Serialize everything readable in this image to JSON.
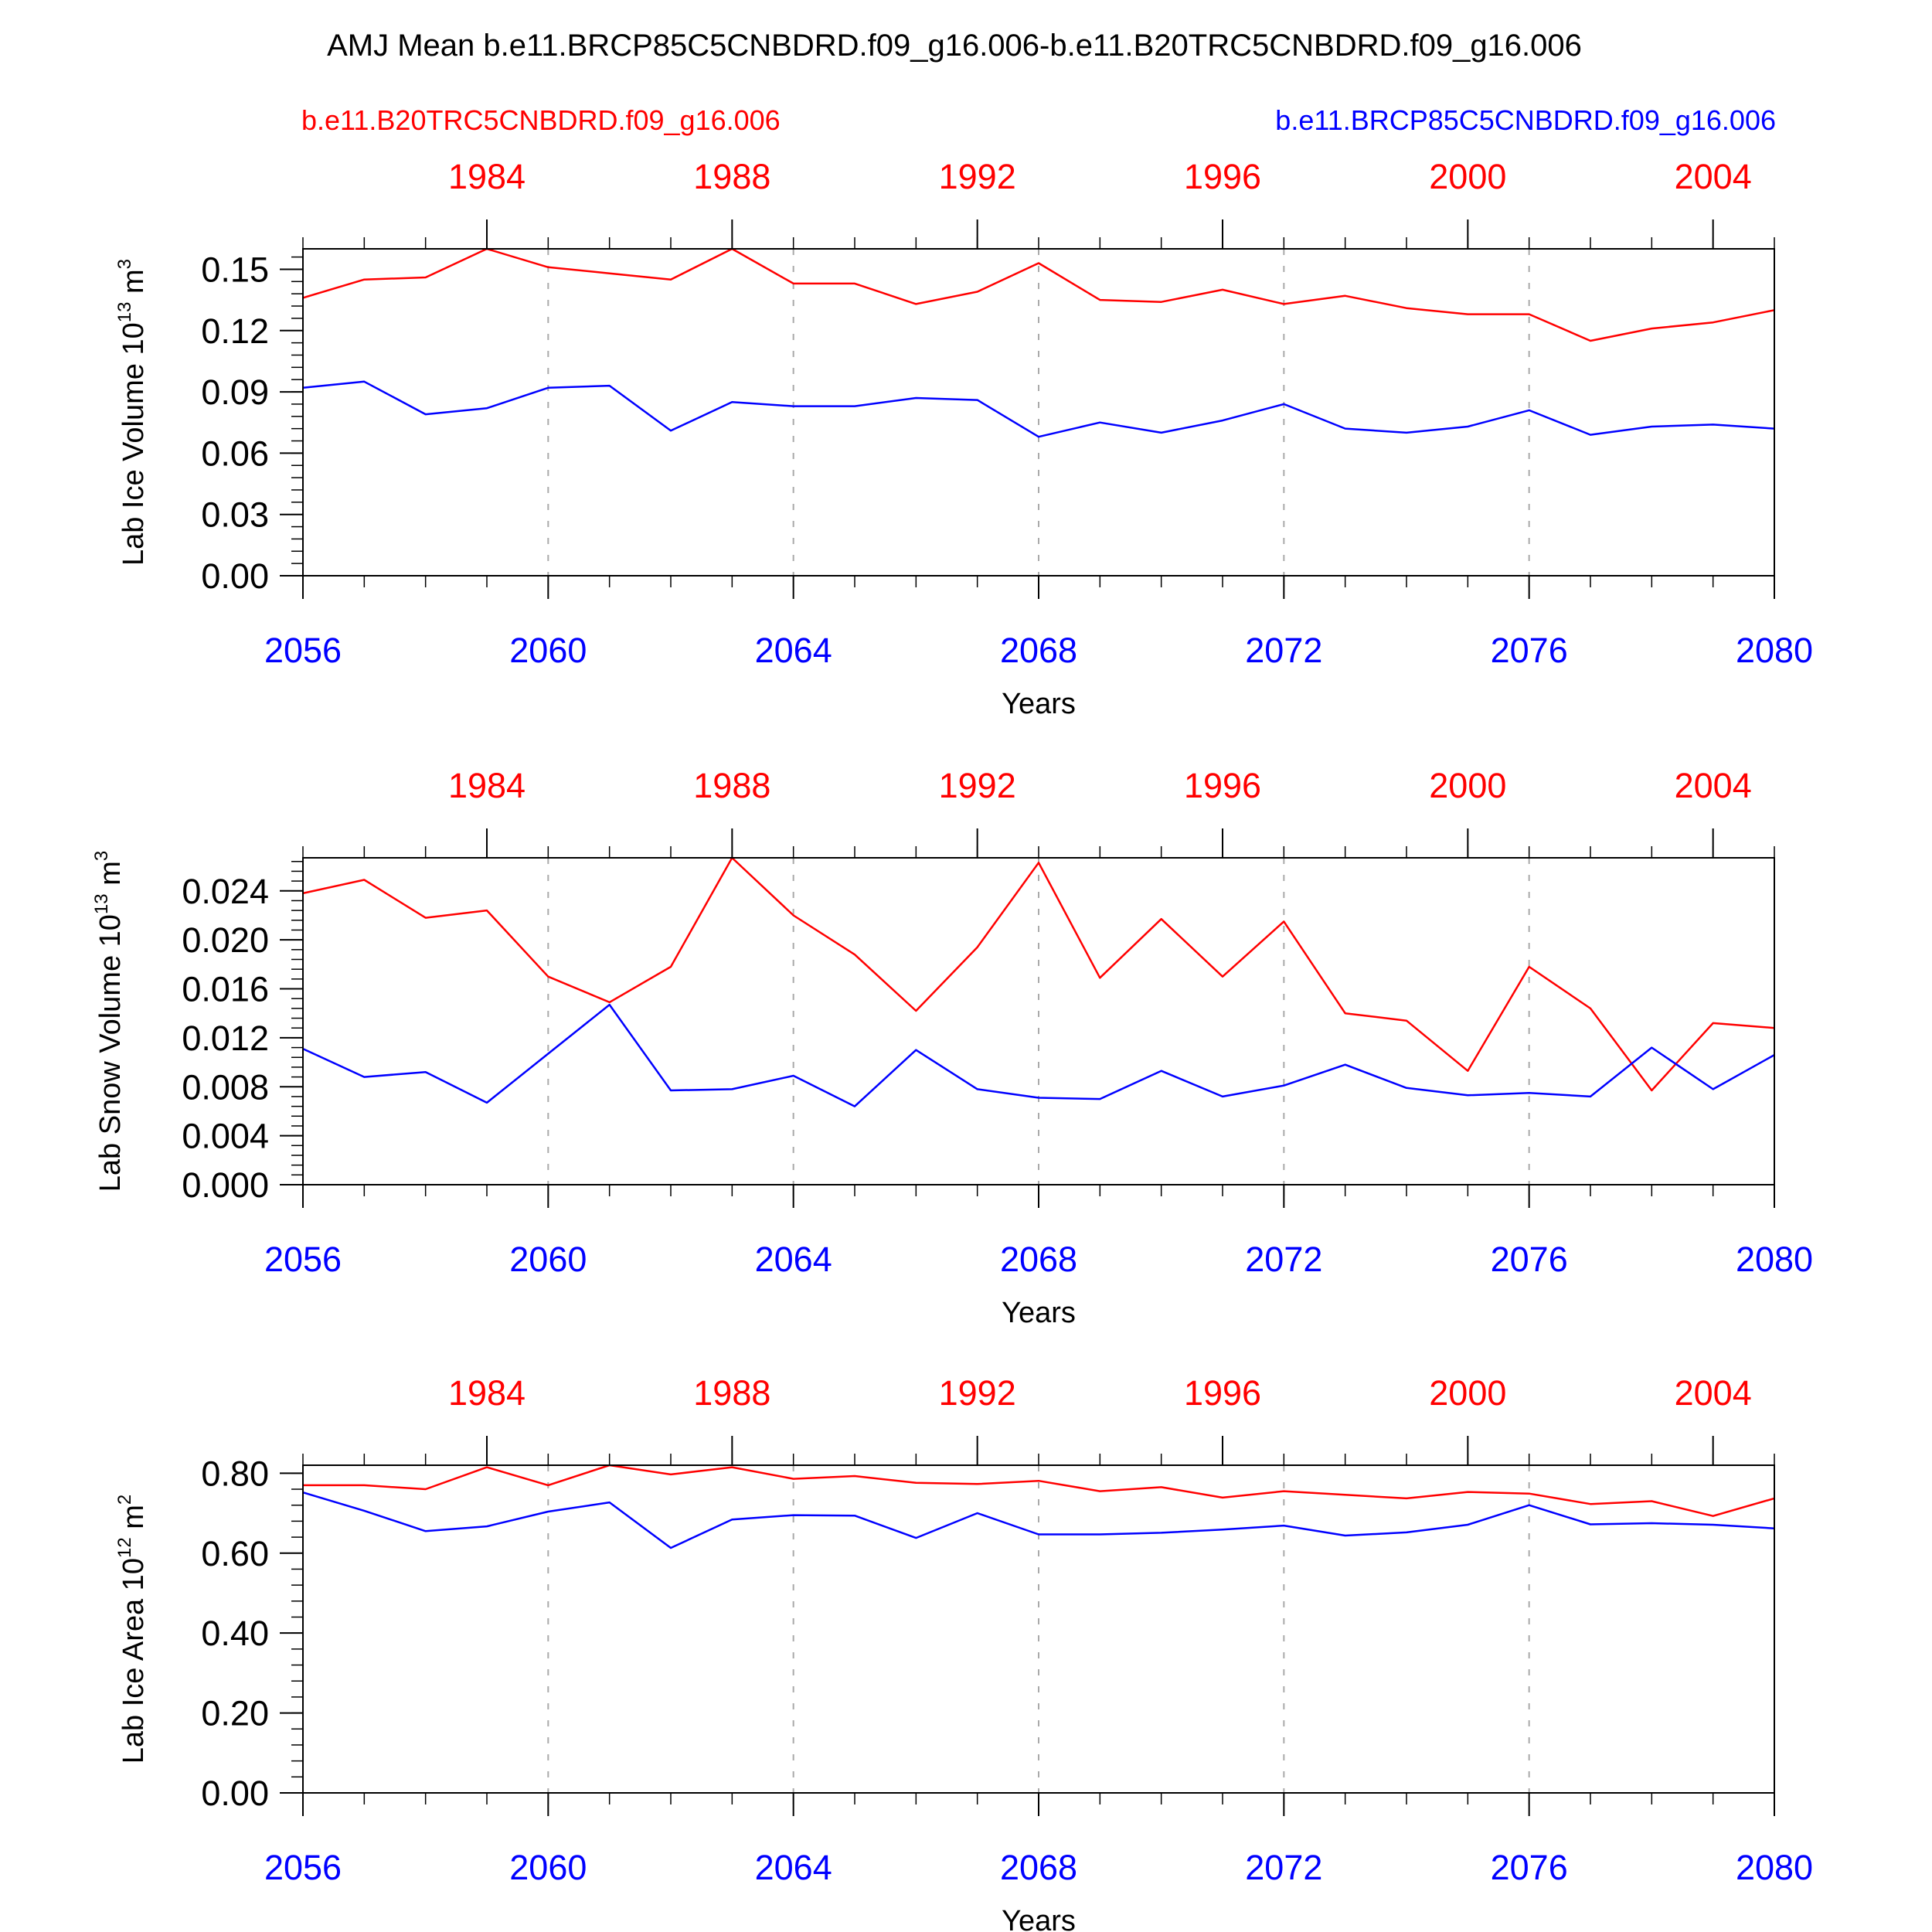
{
  "figure": {
    "title": "AMJ Mean b.e11.BRCP85C5CNBDRD.f09_g16.006-b.e11.B20TRC5CNBDRD.f09_g16.006",
    "left_case": "b.e11.B20TRC5CNBDRD.f09_g16.006",
    "right_case": "b.e11.BRCP85C5CNBDRD.f09_g16.006",
    "colors": {
      "historical": "#ff0000",
      "future": "#0000ff",
      "grid": "#aaaaaa"
    }
  },
  "chart_data": [
    {
      "type": "line",
      "ylabel": {
        "prefix": "Lab Ice Volume 10",
        "exp": "13",
        "unit": " m",
        "unit_exp": "3"
      },
      "xlabel": "Years",
      "ylim": [
        0,
        0.16
      ],
      "yticks": [
        "0.00",
        "0.03",
        "0.06",
        "0.09",
        "0.12",
        "0.15"
      ],
      "x_bottom": {
        "range": [
          2056,
          2080
        ],
        "ticks": [
          "2056",
          "2060",
          "2064",
          "2068",
          "2072",
          "2076",
          "2080"
        ]
      },
      "x_top": {
        "range": [
          1981,
          2005
        ],
        "ticks": [
          "1984",
          "1988",
          "1992",
          "1996",
          "2000",
          "2004"
        ]
      },
      "series": [
        {
          "color": "#ff0000",
          "x": [
            1981,
            1982,
            1983,
            1984,
            1985,
            1986,
            1987,
            1988,
            1989,
            1990,
            1991,
            1992,
            1993,
            1994,
            1995,
            1996,
            1997,
            1998,
            1999,
            2000,
            2001,
            2002,
            2003,
            2004,
            2005
          ],
          "values": [
            0.136,
            0.145,
            0.146,
            0.16,
            0.151,
            0.148,
            0.145,
            0.16,
            0.143,
            0.143,
            0.133,
            0.139,
            0.153,
            0.135,
            0.134,
            0.14,
            0.133,
            0.137,
            0.131,
            0.128,
            0.128,
            0.115,
            0.121,
            0.124,
            0.13
          ]
        },
        {
          "color": "#0000ff",
          "x": [
            2056,
            2057,
            2058,
            2059,
            2060,
            2061,
            2062,
            2063,
            2064,
            2065,
            2066,
            2067,
            2068,
            2069,
            2070,
            2071,
            2072,
            2073,
            2074,
            2075,
            2076,
            2077,
            2078,
            2079,
            2080
          ],
          "values": [
            0.092,
            0.095,
            0.079,
            0.082,
            0.092,
            0.093,
            0.071,
            0.085,
            0.083,
            0.083,
            0.087,
            0.086,
            0.068,
            0.075,
            0.07,
            0.076,
            0.084,
            0.072,
            0.07,
            0.073,
            0.081,
            0.069,
            0.073,
            0.074,
            0.072
          ]
        }
      ]
    },
    {
      "type": "line",
      "ylabel": {
        "prefix": "Lab Snow Volume 10",
        "exp": "13",
        "unit": " m",
        "unit_exp": "3"
      },
      "xlabel": "Years",
      "ylim": [
        0,
        0.0267
      ],
      "yticks": [
        "0.000",
        "0.004",
        "0.008",
        "0.012",
        "0.016",
        "0.020",
        "0.024"
      ],
      "x_bottom": {
        "range": [
          2056,
          2080
        ],
        "ticks": [
          "2056",
          "2060",
          "2064",
          "2068",
          "2072",
          "2076",
          "2080"
        ]
      },
      "x_top": {
        "range": [
          1981,
          2005
        ],
        "ticks": [
          "1984",
          "1988",
          "1992",
          "1996",
          "2000",
          "2004"
        ]
      },
      "series": [
        {
          "color": "#ff0000",
          "x": [
            1981,
            1982,
            1983,
            1984,
            1985,
            1986,
            1987,
            1988,
            1989,
            1990,
            1991,
            1992,
            1993,
            1994,
            1995,
            1996,
            1997,
            1998,
            1999,
            2000,
            2001,
            2002,
            2003,
            2004,
            2005
          ],
          "values": [
            0.0238,
            0.0249,
            0.0218,
            0.0224,
            0.017,
            0.0149,
            0.0178,
            0.0267,
            0.022,
            0.0188,
            0.0142,
            0.0194,
            0.0263,
            0.0169,
            0.0217,
            0.017,
            0.0215,
            0.014,
            0.0134,
            0.0093,
            0.0178,
            0.0144,
            0.0077,
            0.0132,
            0.0128
          ]
        },
        {
          "color": "#0000ff",
          "x": [
            2056,
            2057,
            2058,
            2059,
            2060,
            2061,
            2062,
            2063,
            2064,
            2065,
            2066,
            2067,
            2068,
            2069,
            2070,
            2071,
            2072,
            2073,
            2074,
            2075,
            2076,
            2077,
            2078,
            2079,
            2080
          ],
          "values": [
            0.0111,
            0.0088,
            0.0092,
            0.0067,
            0.0107,
            0.0147,
            0.0077,
            0.0078,
            0.0089,
            0.0064,
            0.011,
            0.0078,
            0.0071,
            0.007,
            0.0093,
            0.0072,
            0.0081,
            0.0098,
            0.0079,
            0.0073,
            0.0075,
            0.0072,
            0.0112,
            0.0078,
            0.0106
          ]
        }
      ]
    },
    {
      "type": "line",
      "ylabel": {
        "prefix": "Lab Ice Area 10",
        "exp": "12",
        "unit": " m",
        "unit_exp": "2"
      },
      "xlabel": "Years",
      "ylim": [
        0,
        0.82
      ],
      "yticks": [
        "0.00",
        "0.20",
        "0.40",
        "0.60",
        "0.80"
      ],
      "x_bottom": {
        "range": [
          2056,
          2080
        ],
        "ticks": [
          "2056",
          "2060",
          "2064",
          "2068",
          "2072",
          "2076",
          "2080"
        ]
      },
      "x_top": {
        "range": [
          1981,
          2005
        ],
        "ticks": [
          "1984",
          "1988",
          "1992",
          "1996",
          "2000",
          "2004"
        ]
      },
      "series": [
        {
          "color": "#ff0000",
          "x": [
            1981,
            1982,
            1983,
            1984,
            1985,
            1986,
            1987,
            1988,
            1989,
            1990,
            1991,
            1992,
            1993,
            1994,
            1995,
            1996,
            1997,
            1998,
            1999,
            2000,
            2001,
            2002,
            2003,
            2004,
            2005
          ],
          "values": [
            0.77,
            0.77,
            0.76,
            0.815,
            0.77,
            0.82,
            0.797,
            0.815,
            0.786,
            0.793,
            0.776,
            0.773,
            0.781,
            0.755,
            0.765,
            0.739,
            0.755,
            0.746,
            0.737,
            0.753,
            0.749,
            0.723,
            0.73,
            0.693,
            0.737
          ]
        },
        {
          "color": "#0000ff",
          "x": [
            2056,
            2057,
            2058,
            2059,
            2060,
            2061,
            2062,
            2063,
            2064,
            2065,
            2066,
            2067,
            2068,
            2069,
            2070,
            2071,
            2072,
            2073,
            2074,
            2075,
            2076,
            2077,
            2078,
            2079,
            2080
          ],
          "values": [
            0.752,
            0.706,
            0.655,
            0.667,
            0.704,
            0.727,
            0.613,
            0.684,
            0.695,
            0.694,
            0.638,
            0.7,
            0.647,
            0.647,
            0.651,
            0.659,
            0.669,
            0.644,
            0.652,
            0.671,
            0.72,
            0.672,
            0.675,
            0.671,
            0.662
          ]
        }
      ]
    }
  ]
}
